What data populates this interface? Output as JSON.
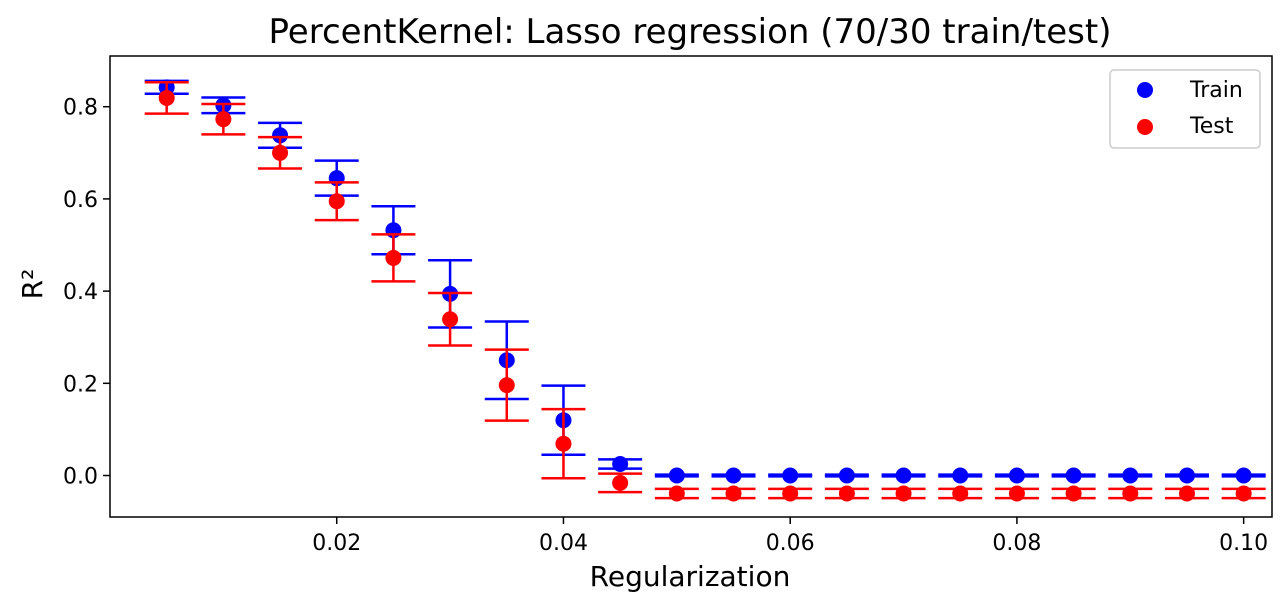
{
  "chart_data": {
    "type": "scatter",
    "title": "PercentKernel: Lasso regression (70/30 train/test)",
    "xlabel": "Regularization",
    "ylabel": "R²",
    "xlim": [
      0.0,
      0.1025
    ],
    "ylim": [
      -0.09,
      0.91
    ],
    "x_ticks": [
      0.02,
      0.04,
      0.06,
      0.08,
      0.1
    ],
    "x_tick_labels": [
      "0.02",
      "0.04",
      "0.06",
      "0.08",
      "0.10"
    ],
    "y_ticks": [
      0.0,
      0.2,
      0.4,
      0.6,
      0.8
    ],
    "y_tick_labels": [
      "0.0",
      "0.2",
      "0.4",
      "0.6",
      "0.8"
    ],
    "grid": false,
    "legend_position": "top-right",
    "x": [
      0.005,
      0.01,
      0.015,
      0.02,
      0.025,
      0.03,
      0.035,
      0.04,
      0.045,
      0.05,
      0.055,
      0.06,
      0.065,
      0.07,
      0.075,
      0.08,
      0.085,
      0.09,
      0.095,
      0.1
    ],
    "series": [
      {
        "name": "Train",
        "color": "#0000ff",
        "values": [
          0.842,
          0.803,
          0.738,
          0.645,
          0.532,
          0.394,
          0.25,
          0.12,
          0.025,
          0.0,
          0.0,
          0.0,
          0.0,
          0.0,
          0.0,
          0.0,
          0.0,
          0.0,
          0.0,
          0.0
        ],
        "error": [
          0.014,
          0.017,
          0.027,
          0.038,
          0.052,
          0.073,
          0.084,
          0.075,
          0.01,
          0.002,
          0.002,
          0.002,
          0.002,
          0.002,
          0.002,
          0.002,
          0.002,
          0.002,
          0.002,
          0.002
        ]
      },
      {
        "name": "Test",
        "color": "#ff0000",
        "values": [
          0.819,
          0.773,
          0.7,
          0.595,
          0.472,
          0.339,
          0.196,
          0.069,
          -0.016,
          -0.039,
          -0.039,
          -0.039,
          -0.039,
          -0.039,
          -0.039,
          -0.039,
          -0.039,
          -0.039,
          -0.039,
          -0.039
        ],
        "error": [
          0.034,
          0.033,
          0.034,
          0.041,
          0.051,
          0.057,
          0.077,
          0.075,
          0.02,
          0.01,
          0.01,
          0.01,
          0.01,
          0.01,
          0.01,
          0.01,
          0.01,
          0.01,
          0.01,
          0.01
        ]
      }
    ]
  }
}
